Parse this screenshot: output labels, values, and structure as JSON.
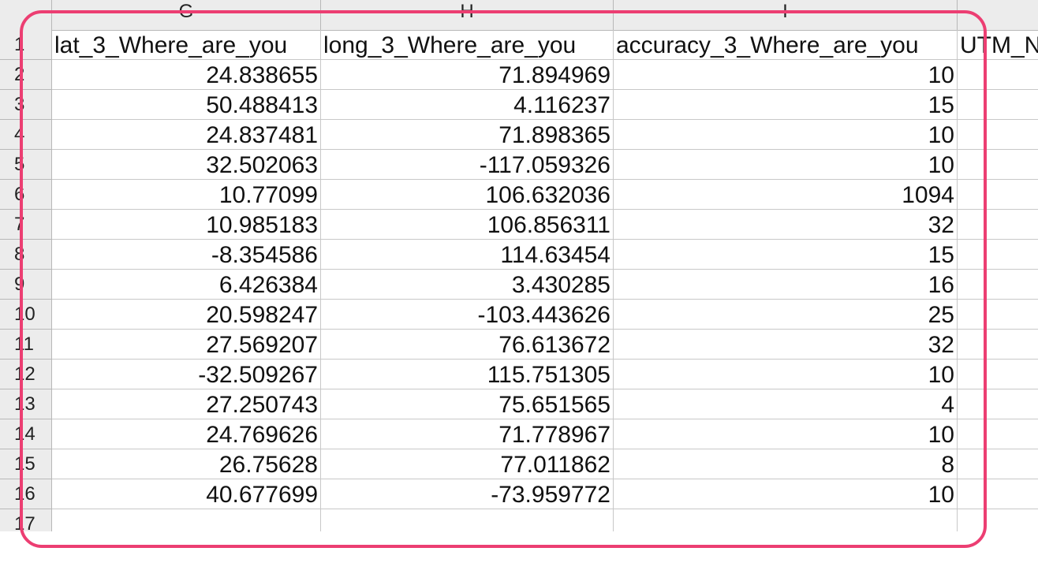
{
  "columns": [
    "G",
    "H",
    "I",
    ""
  ],
  "header_row": {
    "row_label": "1",
    "cells": [
      "lat_3_Where_are_you",
      "long_3_Where_are_you",
      "accuracy_3_Where_are_you",
      "UTM_N"
    ]
  },
  "rows": [
    {
      "label": "2",
      "lat": "24.838655",
      "long": "71.894969",
      "accuracy": "10"
    },
    {
      "label": "3",
      "lat": "50.488413",
      "long": "4.116237",
      "accuracy": "15"
    },
    {
      "label": "4",
      "lat": "24.837481",
      "long": "71.898365",
      "accuracy": "10"
    },
    {
      "label": "5",
      "lat": "32.502063",
      "long": "-117.059326",
      "accuracy": "10"
    },
    {
      "label": "6",
      "lat": "10.77099",
      "long": "106.632036",
      "accuracy": "1094"
    },
    {
      "label": "7",
      "lat": "10.985183",
      "long": "106.856311",
      "accuracy": "32"
    },
    {
      "label": "8",
      "lat": "-8.354586",
      "long": "114.63454",
      "accuracy": "15"
    },
    {
      "label": "9",
      "lat": "6.426384",
      "long": "3.430285",
      "accuracy": "16"
    },
    {
      "label": "10",
      "lat": "20.598247",
      "long": "-103.443626",
      "accuracy": "25"
    },
    {
      "label": "11",
      "lat": "27.569207",
      "long": "76.613672",
      "accuracy": "32"
    },
    {
      "label": "12",
      "lat": "-32.509267",
      "long": "115.751305",
      "accuracy": "10"
    },
    {
      "label": "13",
      "lat": "27.250743",
      "long": "75.651565",
      "accuracy": "4"
    },
    {
      "label": "14",
      "lat": "24.769626",
      "long": "71.778967",
      "accuracy": "10"
    },
    {
      "label": "15",
      "lat": "26.75628",
      "long": "77.011862",
      "accuracy": "8"
    },
    {
      "label": "16",
      "lat": "40.677699",
      "long": "-73.959772",
      "accuracy": "10"
    },
    {
      "label": "17",
      "lat": "",
      "long": "",
      "accuracy": ""
    }
  ],
  "highlight_color": "#ec3e72"
}
